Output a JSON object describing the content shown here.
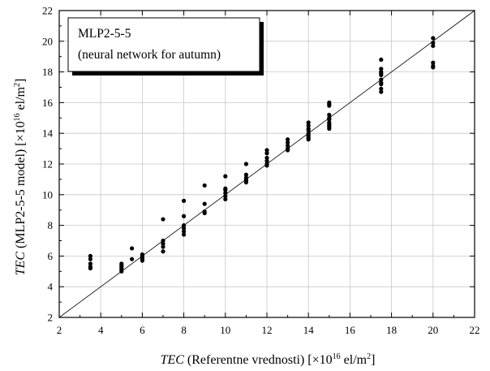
{
  "chart_data": {
    "type": "scatter",
    "legend_title": "MLP2-5-5",
    "legend_subtitle": "(neural network for autumn)",
    "xlabel": {
      "italic": "TEC",
      "text": " (Referentne vrednosti) [×10",
      "sup1": "16",
      "text2": " el/m",
      "sup2": "2",
      "text3": "]"
    },
    "ylabel": {
      "italic": "TEC",
      "text": " (MLP2-5-5 model) [×10",
      "sup1": "16",
      "text2": " el/m",
      "sup2": "2",
      "text3": "]"
    },
    "xlim": [
      2,
      22
    ],
    "ylim": [
      2,
      22
    ],
    "xticks": [
      2,
      4,
      6,
      8,
      10,
      12,
      14,
      16,
      18,
      20,
      22
    ],
    "yticks": [
      2,
      4,
      6,
      8,
      10,
      12,
      14,
      16,
      18,
      20,
      22
    ],
    "reference_line": [
      [
        2,
        2
      ],
      [
        22,
        22
      ]
    ],
    "grid": true,
    "legend_position": "top-left",
    "marker_color": "#000000",
    "points": [
      [
        3.5,
        6.0
      ],
      [
        3.5,
        5.8
      ],
      [
        3.5,
        5.5
      ],
      [
        3.5,
        5.3
      ],
      [
        3.5,
        5.2
      ],
      [
        5,
        5.5
      ],
      [
        5,
        5.4
      ],
      [
        5,
        5.3
      ],
      [
        5,
        5.2
      ],
      [
        5,
        5.1
      ],
      [
        5,
        5.0
      ],
      [
        5.5,
        6.5
      ],
      [
        5.5,
        5.8
      ],
      [
        6,
        6.1
      ],
      [
        6,
        6.0
      ],
      [
        6,
        5.9
      ],
      [
        6,
        5.8
      ],
      [
        6,
        5.7
      ],
      [
        7,
        8.4
      ],
      [
        7,
        7.0
      ],
      [
        7,
        6.8
      ],
      [
        7,
        6.6
      ],
      [
        7,
        6.3
      ],
      [
        8,
        9.6
      ],
      [
        8,
        8.6
      ],
      [
        8,
        8.0
      ],
      [
        8,
        7.8
      ],
      [
        8,
        7.6
      ],
      [
        8,
        7.4
      ],
      [
        9,
        10.6
      ],
      [
        9,
        9.4
      ],
      [
        9,
        8.9
      ],
      [
        9,
        8.8
      ],
      [
        10,
        11.2
      ],
      [
        10,
        10.4
      ],
      [
        10,
        10.3
      ],
      [
        10,
        10.1
      ],
      [
        10,
        9.9
      ],
      [
        10,
        9.7
      ],
      [
        11,
        12.0
      ],
      [
        11,
        11.3
      ],
      [
        11,
        11.1
      ],
      [
        11,
        11.0
      ],
      [
        11,
        10.9
      ],
      [
        11,
        10.8
      ],
      [
        12,
        12.9
      ],
      [
        12,
        12.7
      ],
      [
        12,
        12.4
      ],
      [
        12,
        12.2
      ],
      [
        12,
        12.0
      ],
      [
        12,
        11.9
      ],
      [
        13,
        13.6
      ],
      [
        13,
        13.4
      ],
      [
        13,
        13.2
      ],
      [
        13,
        13.0
      ],
      [
        13,
        12.9
      ],
      [
        14,
        14.7
      ],
      [
        14,
        14.5
      ],
      [
        14,
        14.3
      ],
      [
        14,
        14.2
      ],
      [
        14,
        14.0
      ],
      [
        14,
        13.9
      ],
      [
        14,
        13.8
      ],
      [
        14,
        13.7
      ],
      [
        14,
        13.6
      ],
      [
        15,
        16.0
      ],
      [
        15,
        15.9
      ],
      [
        15,
        15.8
      ],
      [
        15,
        15.2
      ],
      [
        15,
        15.0
      ],
      [
        15,
        14.9
      ],
      [
        15,
        14.7
      ],
      [
        15,
        14.6
      ],
      [
        15,
        14.5
      ],
      [
        15,
        14.4
      ],
      [
        15,
        14.3
      ],
      [
        17.5,
        18.8
      ],
      [
        17.5,
        18.2
      ],
      [
        17.5,
        18.0
      ],
      [
        17.5,
        17.9
      ],
      [
        17.5,
        17.8
      ],
      [
        17.5,
        17.5
      ],
      [
        17.5,
        17.3
      ],
      [
        17.5,
        17.2
      ],
      [
        17.5,
        16.9
      ],
      [
        17.5,
        16.7
      ],
      [
        20,
        20.2
      ],
      [
        20,
        19.9
      ],
      [
        20,
        19.7
      ],
      [
        20,
        18.6
      ],
      [
        20,
        18.4
      ],
      [
        20,
        18.3
      ]
    ]
  }
}
